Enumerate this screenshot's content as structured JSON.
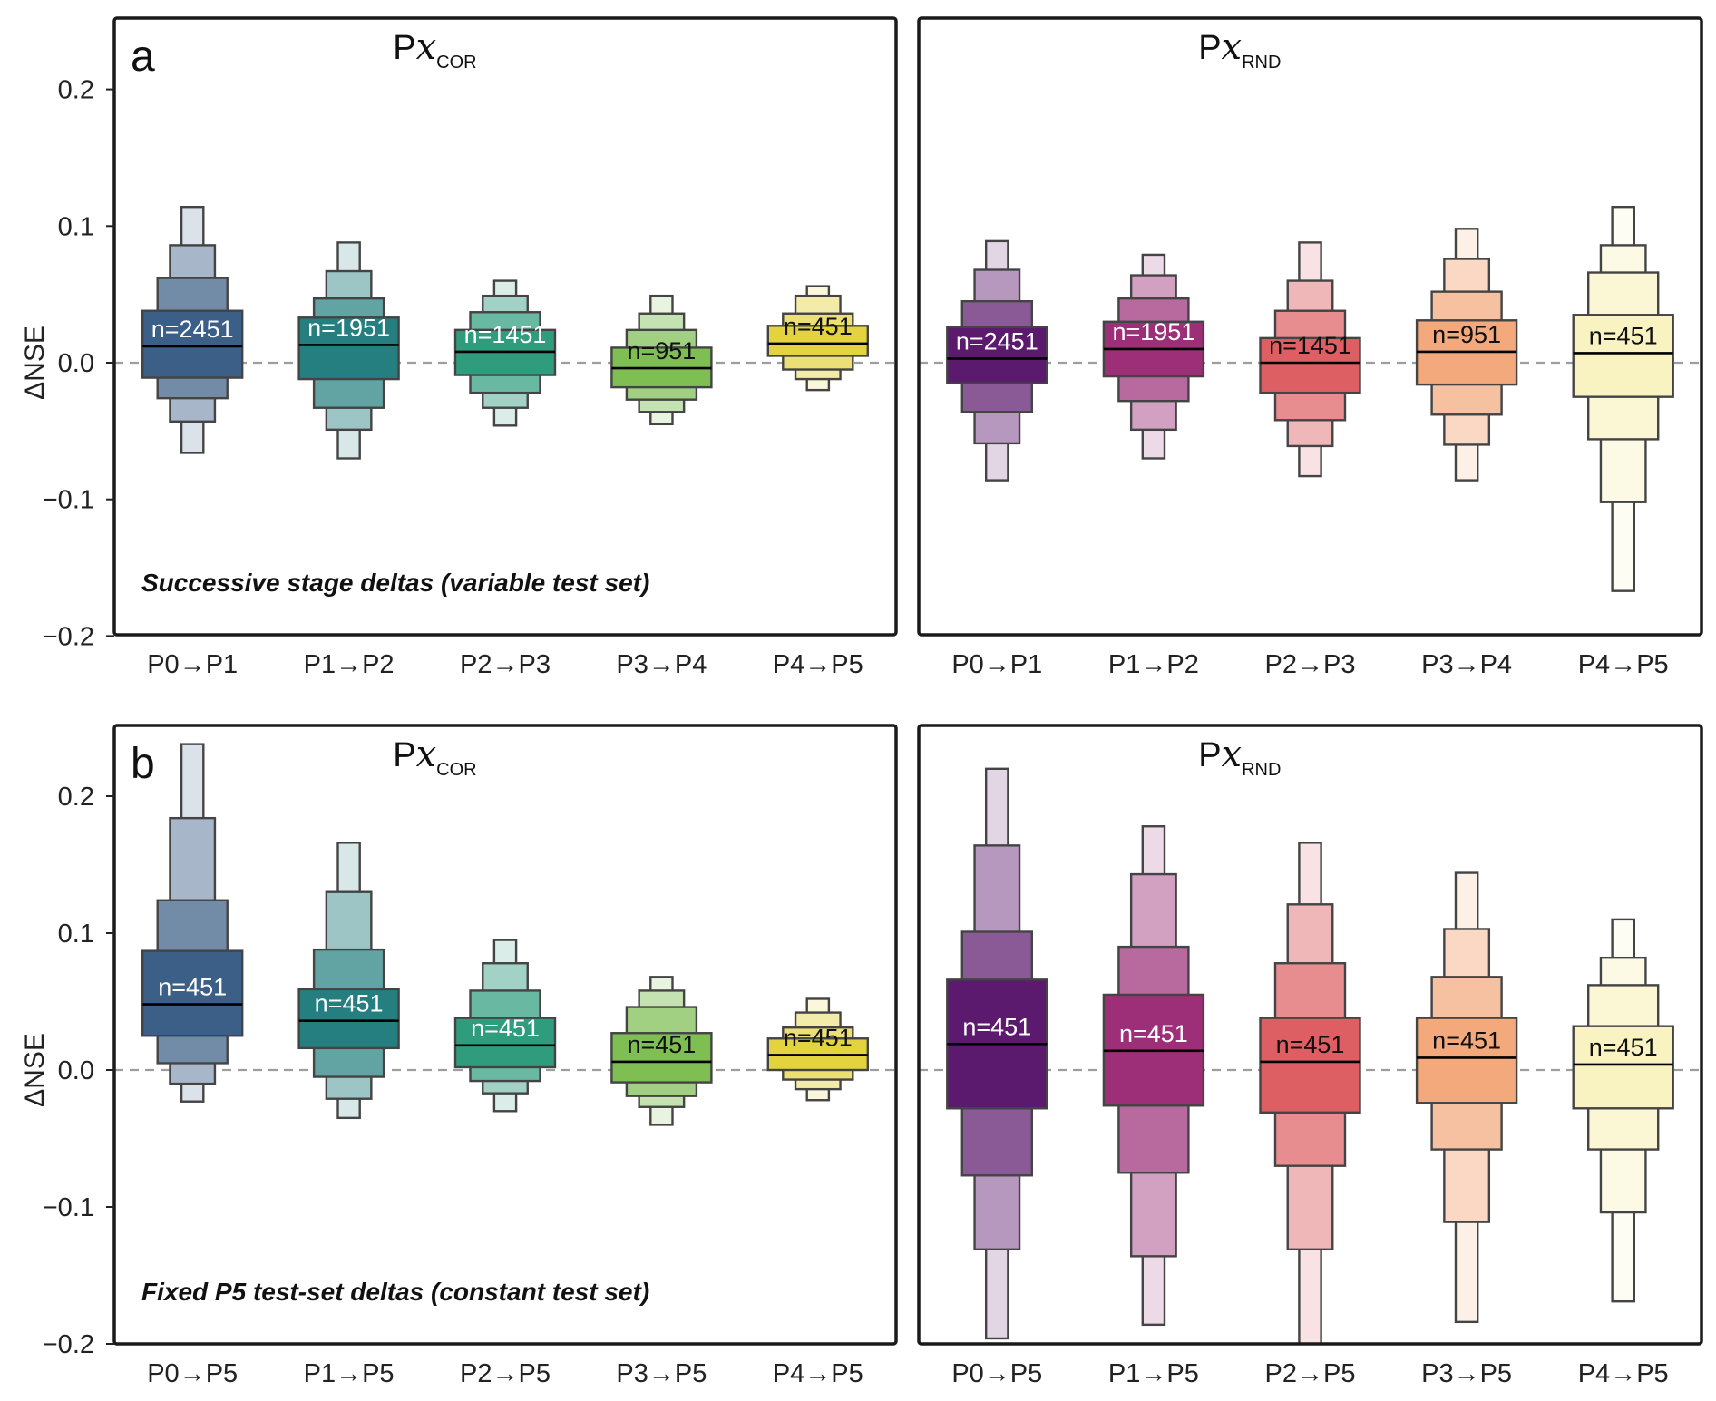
{
  "chart_data": [
    {
      "type": "boxen",
      "panel_label": "a",
      "title": {
        "main": "P",
        "italic": "x",
        "sub": "COR"
      },
      "annotation": "Successive stage deltas (variable test set)",
      "ylabel": "ΔNSE",
      "ylim": [
        -0.2,
        0.24
      ],
      "yticks": [
        "−0.2",
        "−0.1",
        "0.0",
        "0.1",
        "0.2"
      ],
      "ytick_values": [
        -0.2,
        -0.1,
        0.0,
        0.1,
        0.2
      ],
      "reference_line": 0.0,
      "categories": [
        "P0→P1",
        "P1→P2",
        "P2→P3",
        "P3→P4",
        "P4→P5"
      ],
      "colors": [
        "#3b5f86",
        "#257f80",
        "#2f9c7e",
        "#7ebe53",
        "#e3d33f"
      ],
      "n_labels": [
        "n=2451",
        "n=1951",
        "n=1451",
        "n=951",
        "n=451"
      ],
      "label_colors": [
        "#ffffff",
        "#ffffff",
        "#ffffff",
        "#111111",
        "#111111"
      ],
      "boxes": [
        {
          "median": 0.012,
          "levels": [
            [
              -0.011,
              0.038
            ],
            [
              -0.026,
              0.062
            ],
            [
              -0.043,
              0.086
            ],
            [
              -0.066,
              0.114
            ]
          ]
        },
        {
          "median": 0.013,
          "levels": [
            [
              -0.012,
              0.033
            ],
            [
              -0.033,
              0.047
            ],
            [
              -0.049,
              0.067
            ],
            [
              -0.07,
              0.088
            ]
          ]
        },
        {
          "median": 0.008,
          "levels": [
            [
              -0.009,
              0.024
            ],
            [
              -0.022,
              0.037
            ],
            [
              -0.033,
              0.049
            ],
            [
              -0.046,
              0.06
            ]
          ]
        },
        {
          "median": -0.004,
          "levels": [
            [
              -0.018,
              0.011
            ],
            [
              -0.027,
              0.024
            ],
            [
              -0.036,
              0.036
            ],
            [
              -0.045,
              0.049
            ]
          ]
        },
        {
          "median": 0.014,
          "levels": [
            [
              0.005,
              0.027
            ],
            [
              -0.005,
              0.036
            ],
            [
              -0.012,
              0.049
            ],
            [
              -0.02,
              0.056
            ]
          ]
        }
      ]
    },
    {
      "type": "boxen",
      "title": {
        "main": "P",
        "italic": "x",
        "sub": "RND"
      },
      "ylim": [
        -0.2,
        0.24
      ],
      "reference_line": 0.0,
      "categories": [
        "P0→P1",
        "P1→P2",
        "P2→P3",
        "P3→P4",
        "P4→P5"
      ],
      "colors": [
        "#5c1a6e",
        "#9c2f78",
        "#de5f63",
        "#f3a97c",
        "#f9f3c2"
      ],
      "n_labels": [
        "n=2451",
        "n=1951",
        "n=1451",
        "n=951",
        "n=451"
      ],
      "label_colors": [
        "#ffffff",
        "#ffffff",
        "#111111",
        "#111111",
        "#111111"
      ],
      "boxes": [
        {
          "median": 0.003,
          "levels": [
            [
              -0.015,
              0.026
            ],
            [
              -0.036,
              0.045
            ],
            [
              -0.059,
              0.068
            ],
            [
              -0.086,
              0.089
            ]
          ]
        },
        {
          "median": 0.01,
          "levels": [
            [
              -0.01,
              0.03
            ],
            [
              -0.028,
              0.047
            ],
            [
              -0.049,
              0.064
            ],
            [
              -0.07,
              0.079
            ]
          ]
        },
        {
          "median": 0.0,
          "levels": [
            [
              -0.022,
              0.018
            ],
            [
              -0.042,
              0.038
            ],
            [
              -0.061,
              0.06
            ],
            [
              -0.083,
              0.088
            ]
          ]
        },
        {
          "median": 0.008,
          "levels": [
            [
              -0.016,
              0.031
            ],
            [
              -0.038,
              0.052
            ],
            [
              -0.06,
              0.076
            ],
            [
              -0.086,
              0.098
            ]
          ]
        },
        {
          "median": 0.007,
          "levels": [
            [
              -0.025,
              0.035
            ],
            [
              -0.056,
              0.066
            ],
            [
              -0.102,
              0.086
            ],
            [
              -0.167,
              0.114
            ]
          ]
        }
      ]
    },
    {
      "type": "boxen",
      "panel_label": "b",
      "title": {
        "main": "P",
        "italic": "x",
        "sub": "COR"
      },
      "annotation": "Fixed P5 test-set deltas (constant test set)",
      "ylabel": "ΔNSE",
      "ylim": [
        -0.2,
        0.24
      ],
      "yticks": [
        "−0.2",
        "−0.1",
        "0.0",
        "0.1",
        "0.2"
      ],
      "ytick_values": [
        -0.2,
        -0.1,
        0.0,
        0.1,
        0.2
      ],
      "reference_line": 0.0,
      "categories": [
        "P0→P5",
        "P1→P5",
        "P2→P5",
        "P3→P5",
        "P4→P5"
      ],
      "colors": [
        "#3b5f86",
        "#257f80",
        "#2f9c7e",
        "#7ebe53",
        "#e3d33f"
      ],
      "n_labels": [
        "n=451",
        "n=451",
        "n=451",
        "n=451",
        "n=451"
      ],
      "label_colors": [
        "#ffffff",
        "#ffffff",
        "#ffffff",
        "#111111",
        "#111111"
      ],
      "boxes": [
        {
          "median": 0.048,
          "levels": [
            [
              0.025,
              0.087
            ],
            [
              0.005,
              0.124
            ],
            [
              -0.01,
              0.184
            ],
            [
              -0.023,
              0.238
            ]
          ]
        },
        {
          "median": 0.036,
          "levels": [
            [
              0.016,
              0.059
            ],
            [
              -0.005,
              0.088
            ],
            [
              -0.021,
              0.13
            ],
            [
              -0.035,
              0.166
            ]
          ]
        },
        {
          "median": 0.018,
          "levels": [
            [
              0.002,
              0.038
            ],
            [
              -0.008,
              0.058
            ],
            [
              -0.017,
              0.078
            ],
            [
              -0.03,
              0.095
            ]
          ]
        },
        {
          "median": 0.006,
          "levels": [
            [
              -0.009,
              0.027
            ],
            [
              -0.019,
              0.046
            ],
            [
              -0.027,
              0.058
            ],
            [
              -0.04,
              0.068
            ]
          ]
        },
        {
          "median": 0.011,
          "levels": [
            [
              0.0,
              0.023
            ],
            [
              -0.007,
              0.031
            ],
            [
              -0.014,
              0.042
            ],
            [
              -0.022,
              0.052
            ]
          ]
        }
      ]
    },
    {
      "type": "boxen",
      "title": {
        "main": "P",
        "italic": "x",
        "sub": "RND"
      },
      "ylim": [
        -0.2,
        0.24
      ],
      "reference_line": 0.0,
      "categories": [
        "P0→P5",
        "P1→P5",
        "P2→P5",
        "P3→P5",
        "P4→P5"
      ],
      "colors": [
        "#5c1a6e",
        "#9c2f78",
        "#de5f63",
        "#f3a97c",
        "#f9f3c2"
      ],
      "n_labels": [
        "n=451",
        "n=451",
        "n=451",
        "n=451",
        "n=451"
      ],
      "label_colors": [
        "#ffffff",
        "#ffffff",
        "#111111",
        "#111111",
        "#111111"
      ],
      "boxes": [
        {
          "median": 0.019,
          "levels": [
            [
              -0.028,
              0.066
            ],
            [
              -0.077,
              0.101
            ],
            [
              -0.131,
              0.164
            ],
            [
              -0.196,
              0.22
            ]
          ]
        },
        {
          "median": 0.014,
          "levels": [
            [
              -0.026,
              0.055
            ],
            [
              -0.075,
              0.09
            ],
            [
              -0.136,
              0.143
            ],
            [
              -0.186,
              0.178
            ]
          ]
        },
        {
          "median": 0.006,
          "levels": [
            [
              -0.031,
              0.038
            ],
            [
              -0.07,
              0.078
            ],
            [
              -0.131,
              0.121
            ],
            [
              -0.205,
              0.166
            ]
          ]
        },
        {
          "median": 0.009,
          "levels": [
            [
              -0.024,
              0.038
            ],
            [
              -0.058,
              0.068
            ],
            [
              -0.111,
              0.103
            ],
            [
              -0.184,
              0.144
            ]
          ]
        },
        {
          "median": 0.004,
          "levels": [
            [
              -0.028,
              0.032
            ],
            [
              -0.058,
              0.062
            ],
            [
              -0.104,
              0.082
            ],
            [
              -0.169,
              0.11
            ]
          ]
        }
      ]
    }
  ]
}
